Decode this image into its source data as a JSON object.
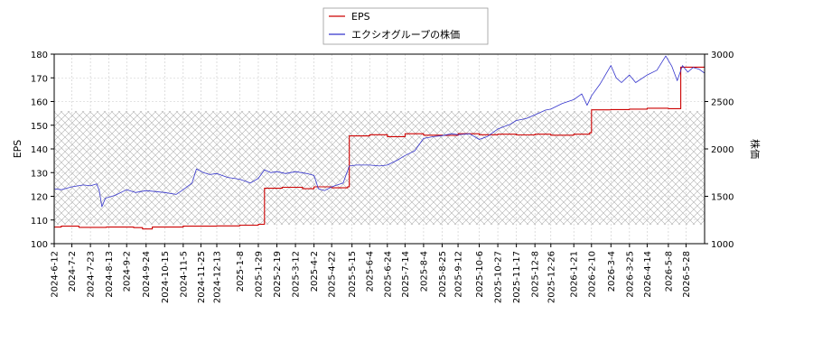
{
  "chart_data": {
    "type": "line",
    "title": "",
    "legend": {
      "placement": "top-center",
      "entries": [
        {
          "name": "EPS",
          "color": "#cc0000"
        },
        {
          "name": "エクシオグループの株価",
          "color": "#3333cc"
        }
      ]
    },
    "y_left": {
      "label": "EPS",
      "ylim": [
        100,
        180
      ],
      "ticks": [
        100,
        110,
        120,
        130,
        140,
        150,
        160,
        170,
        180
      ]
    },
    "y_right": {
      "label": "株価",
      "ylim": [
        1000,
        3000
      ],
      "ticks": [
        1000,
        1500,
        2000,
        2500,
        3000
      ]
    },
    "x_range": [
      "2024-06-12",
      "2026-06-18"
    ],
    "x_ticks": [
      "2024-6-12",
      "2024-7-2",
      "2024-7-23",
      "2024-8-13",
      "2024-9-2",
      "2024-9-24",
      "2024-10-15",
      "2024-11-5",
      "2024-11-25",
      "2024-12-13",
      "2025-1-8",
      "2025-1-29",
      "2025-2-19",
      "2025-3-12",
      "2025-4-2",
      "2025-4-22",
      "2025-5-15",
      "2025-6-4",
      "2025-6-24",
      "2025-7-14",
      "2025-8-4",
      "2025-8-25",
      "2025-9-12",
      "2025-10-6",
      "2025-10-27",
      "2025-11-17",
      "2025-12-8",
      "2025-12-26",
      "2026-1-21",
      "2026-2-10",
      "2026-3-4",
      "2026-3-25",
      "2026-4-14",
      "2026-5-8",
      "2026-5-28"
    ],
    "grid": true,
    "hatched_band": {
      "y_from": 108,
      "y_to": 156
    },
    "series": [
      {
        "name": "EPS",
        "axis": "left",
        "color": "#cc0000",
        "step": true,
        "points": [
          [
            "2024-06-12",
            107.0
          ],
          [
            "2024-06-20",
            107.4
          ],
          [
            "2024-07-10",
            106.9
          ],
          [
            "2024-08-10",
            107.0
          ],
          [
            "2024-09-10",
            106.8
          ],
          [
            "2024-09-20",
            106.2
          ],
          [
            "2024-10-01",
            107.0
          ],
          [
            "2024-11-05",
            107.4
          ],
          [
            "2024-12-13",
            107.5
          ],
          [
            "2025-01-08",
            107.8
          ],
          [
            "2025-01-29",
            108.2
          ],
          [
            "2025-02-05",
            123.4
          ],
          [
            "2025-02-25",
            123.8
          ],
          [
            "2025-03-20",
            123.2
          ],
          [
            "2025-04-02",
            124.0
          ],
          [
            "2025-04-22",
            123.6
          ],
          [
            "2025-05-10",
            124.0
          ],
          [
            "2025-05-12",
            145.5
          ],
          [
            "2025-06-04",
            146.0
          ],
          [
            "2025-06-24",
            145.2
          ],
          [
            "2025-07-14",
            146.4
          ],
          [
            "2025-08-04",
            145.8
          ],
          [
            "2025-08-25",
            145.7
          ],
          [
            "2025-09-12",
            146.4
          ],
          [
            "2025-10-06",
            146.0
          ],
          [
            "2025-10-27",
            146.2
          ],
          [
            "2025-11-17",
            145.9
          ],
          [
            "2025-12-08",
            146.2
          ],
          [
            "2025-12-26",
            145.8
          ],
          [
            "2026-01-21",
            146.2
          ],
          [
            "2026-02-08",
            146.8
          ],
          [
            "2026-02-10",
            156.5
          ],
          [
            "2026-03-04",
            156.6
          ],
          [
            "2026-03-25",
            156.8
          ],
          [
            "2026-04-14",
            157.2
          ],
          [
            "2026-05-08",
            157.0
          ],
          [
            "2026-05-20",
            157.0
          ],
          [
            "2026-05-22",
            174.5
          ],
          [
            "2026-06-18",
            175.0
          ]
        ]
      },
      {
        "name": "エクシオグループの株価",
        "axis": "right",
        "color": "#3333cc",
        "step": false,
        "points": [
          [
            "2024-06-12",
            1580
          ],
          [
            "2024-06-20",
            1570
          ],
          [
            "2024-07-02",
            1600
          ],
          [
            "2024-07-15",
            1620
          ],
          [
            "2024-07-23",
            1610
          ],
          [
            "2024-07-30",
            1630
          ],
          [
            "2024-08-02",
            1560
          ],
          [
            "2024-08-05",
            1390
          ],
          [
            "2024-08-09",
            1480
          ],
          [
            "2024-08-20",
            1510
          ],
          [
            "2024-09-02",
            1570
          ],
          [
            "2024-09-12",
            1540
          ],
          [
            "2024-09-24",
            1560
          ],
          [
            "2024-10-05",
            1550
          ],
          [
            "2024-10-15",
            1540
          ],
          [
            "2024-10-28",
            1520
          ],
          [
            "2024-11-05",
            1570
          ],
          [
            "2024-11-15",
            1640
          ],
          [
            "2024-11-20",
            1790
          ],
          [
            "2024-11-28",
            1750
          ],
          [
            "2024-12-05",
            1730
          ],
          [
            "2024-12-13",
            1740
          ],
          [
            "2024-12-25",
            1700
          ],
          [
            "2025-01-08",
            1680
          ],
          [
            "2025-01-20",
            1640
          ],
          [
            "2025-01-29",
            1690
          ],
          [
            "2025-02-05",
            1780
          ],
          [
            "2025-02-12",
            1750
          ],
          [
            "2025-02-19",
            1760
          ],
          [
            "2025-03-01",
            1740
          ],
          [
            "2025-03-12",
            1760
          ],
          [
            "2025-03-25",
            1740
          ],
          [
            "2025-04-02",
            1720
          ],
          [
            "2025-04-07",
            1580
          ],
          [
            "2025-04-14",
            1560
          ],
          [
            "2025-04-22",
            1600
          ],
          [
            "2025-05-05",
            1640
          ],
          [
            "2025-05-12",
            1820
          ],
          [
            "2025-05-20",
            1830
          ],
          [
            "2025-06-04",
            1830
          ],
          [
            "2025-06-15",
            1820
          ],
          [
            "2025-06-24",
            1830
          ],
          [
            "2025-07-05",
            1880
          ],
          [
            "2025-07-14",
            1930
          ],
          [
            "2025-07-25",
            1980
          ],
          [
            "2025-08-04",
            2110
          ],
          [
            "2025-08-15",
            2130
          ],
          [
            "2025-08-25",
            2140
          ],
          [
            "2025-09-05",
            2160
          ],
          [
            "2025-09-12",
            2150
          ],
          [
            "2025-09-25",
            2160
          ],
          [
            "2025-10-06",
            2100
          ],
          [
            "2025-10-15",
            2130
          ],
          [
            "2025-10-27",
            2210
          ],
          [
            "2025-11-10",
            2260
          ],
          [
            "2025-11-17",
            2300
          ],
          [
            "2025-11-28",
            2320
          ],
          [
            "2025-12-08",
            2360
          ],
          [
            "2025-12-20",
            2410
          ],
          [
            "2025-12-26",
            2420
          ],
          [
            "2026-01-08",
            2480
          ],
          [
            "2026-01-21",
            2520
          ],
          [
            "2026-01-30",
            2580
          ],
          [
            "2026-02-05",
            2460
          ],
          [
            "2026-02-10",
            2560
          ],
          [
            "2026-02-20",
            2690
          ],
          [
            "2026-03-04",
            2880
          ],
          [
            "2026-03-10",
            2750
          ],
          [
            "2026-03-16",
            2700
          ],
          [
            "2026-03-25",
            2780
          ],
          [
            "2026-04-01",
            2700
          ],
          [
            "2026-04-14",
            2780
          ],
          [
            "2026-04-25",
            2830
          ],
          [
            "2026-05-05",
            2980
          ],
          [
            "2026-05-12",
            2870
          ],
          [
            "2026-05-18",
            2720
          ],
          [
            "2026-05-24",
            2880
          ],
          [
            "2026-05-30",
            2810
          ],
          [
            "2026-06-05",
            2860
          ],
          [
            "2026-06-12",
            2840
          ],
          [
            "2026-06-18",
            2800
          ]
        ]
      }
    ]
  }
}
